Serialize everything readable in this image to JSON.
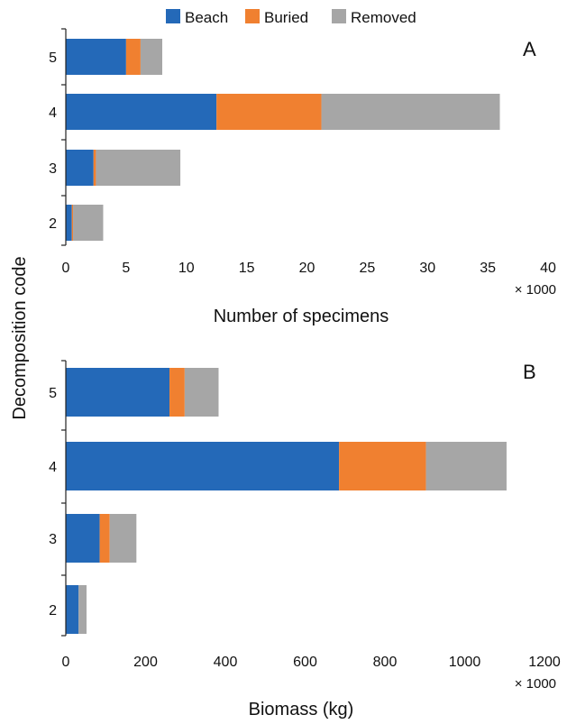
{
  "legend": [
    {
      "name": "Beach",
      "color": "#2469b8"
    },
    {
      "name": "Buried",
      "color": "#f08030"
    },
    {
      "name": "Removed",
      "color": "#a6a6a6"
    }
  ],
  "shared_ylabel": "Decomposition code",
  "chart_data": [
    {
      "type": "bar",
      "orientation": "horizontal",
      "stacked": true,
      "panel_label": "A",
      "categories": [
        "5",
        "4",
        "3",
        "2"
      ],
      "series": [
        {
          "name": "Beach",
          "values": [
            5.0,
            12.5,
            2.3,
            0.5
          ]
        },
        {
          "name": "Buried",
          "values": [
            1.2,
            8.7,
            0.2,
            0.1
          ]
        },
        {
          "name": "Removed",
          "values": [
            1.8,
            14.8,
            7.0,
            2.5
          ]
        }
      ],
      "xlabel": "Number of specimens",
      "x_multiplier": "× 1000",
      "xlim": [
        0,
        40
      ],
      "xticks": [
        "0",
        "5",
        "10",
        "15",
        "20",
        "25",
        "30",
        "35",
        "40"
      ]
    },
    {
      "type": "bar",
      "orientation": "horizontal",
      "stacked": true,
      "panel_label": "B",
      "categories": [
        "5",
        "4",
        "3",
        "2"
      ],
      "series": [
        {
          "name": "Beach",
          "values": [
            260,
            685,
            85,
            32
          ]
        },
        {
          "name": "Buried",
          "values": [
            38,
            218,
            25,
            0
          ]
        },
        {
          "name": "Removed",
          "values": [
            85,
            202,
            67,
            20
          ]
        }
      ],
      "xlabel": "Biomass (kg)",
      "x_multiplier": "× 1000",
      "xlim": [
        0,
        1200
      ],
      "xticks": [
        "0",
        "200",
        "400",
        "600",
        "800",
        "1000",
        "1200"
      ]
    }
  ]
}
